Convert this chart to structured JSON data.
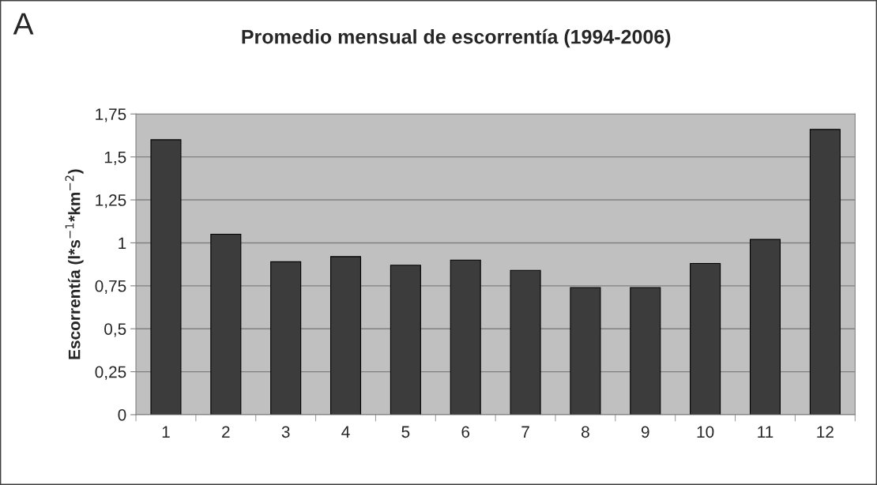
{
  "chart_data": {
    "type": "bar",
    "title": "Promedio mensual de escorrentía (1994-2006)",
    "ylabel": "Escorrentía (l*s$^{−1}$*km$^{−2}$)",
    "annotations": [
      "A"
    ],
    "categories": [
      "1",
      "2",
      "3",
      "4",
      "5",
      "6",
      "7",
      "8",
      "9",
      "10",
      "11",
      "12"
    ],
    "values": [
      1.6,
      1.05,
      0.89,
      0.92,
      0.87,
      0.9,
      0.84,
      0.74,
      0.74,
      0.88,
      1.02,
      1.66
    ],
    "color": "#3c3c3c",
    "ylim": [
      0,
      1.75
    ],
    "yticks": [
      0,
      {
        "value": 0.25,
        "label": "0,25"
      },
      {
        "value": 0.5,
        "label": "0,5"
      },
      {
        "value": 0.75,
        "label": "0,75"
      },
      1,
      {
        "value": 1.25,
        "label": "1,25"
      },
      {
        "value": 1.5,
        "label": "1,5"
      },
      {
        "value": 1.75,
        "label": "1,75"
      }
    ],
    "grid": "y",
    "legend": false
  }
}
